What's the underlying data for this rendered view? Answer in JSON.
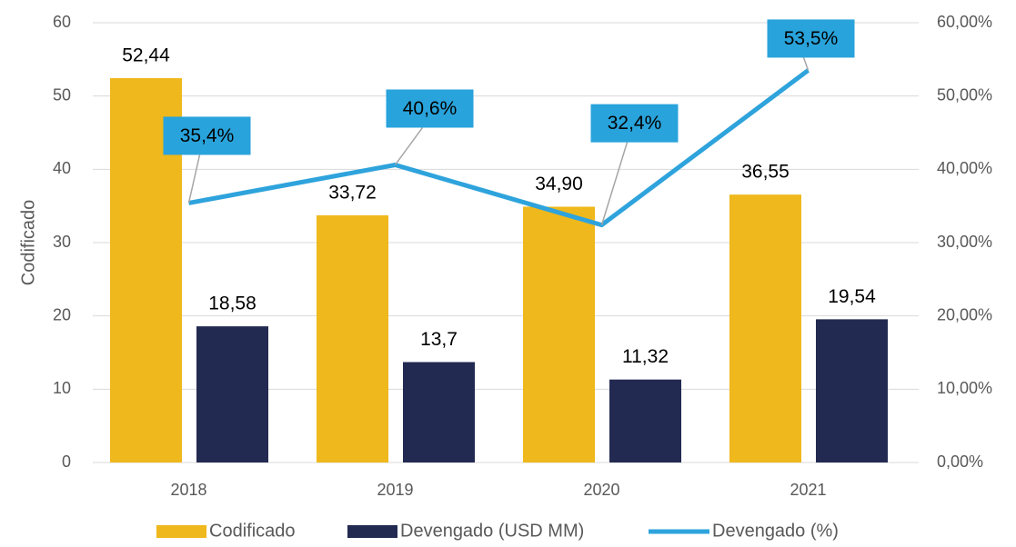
{
  "chart_data": {
    "type": "bar",
    "categories": [
      "2018",
      "2019",
      "2020",
      "2021"
    ],
    "y_label": "Codificado",
    "ylim": [
      0,
      60
    ],
    "yticks": [
      0,
      10,
      20,
      30,
      40,
      50,
      60
    ],
    "y2lim": [
      0,
      60
    ],
    "y2ticks": [
      {
        "value": 0,
        "label": "0,00%"
      },
      {
        "value": 10,
        "label": "10,00%"
      },
      {
        "value": 20,
        "label": "20,00%"
      },
      {
        "value": 30,
        "label": "30,00%"
      },
      {
        "value": 40,
        "label": "40,00%"
      },
      {
        "value": 50,
        "label": "50,00%"
      },
      {
        "value": 60,
        "label": "60,00%"
      }
    ],
    "grid": true,
    "legend": "bottom",
    "series": [
      {
        "name": "Codificado",
        "type": "bar",
        "color": "#efb81c",
        "values": [
          52.44,
          33.72,
          34.9,
          36.55
        ],
        "value_labels": [
          "52,44",
          "33,72",
          "34,90",
          "36,55"
        ]
      },
      {
        "name": "Devengado (USD MM)",
        "type": "bar",
        "color": "#232a52",
        "values": [
          18.58,
          13.7,
          11.32,
          19.54
        ],
        "value_labels": [
          "18,58",
          "13,7",
          "11,32",
          "19,54"
        ]
      },
      {
        "name": "Devengado (%)",
        "type": "line",
        "axis": "y2",
        "color": "#2ea3dc",
        "values": [
          35.4,
          40.6,
          32.4,
          53.5
        ],
        "value_labels": [
          "35,4%",
          "40,6%",
          "32,4%",
          "53,5%"
        ]
      }
    ]
  }
}
